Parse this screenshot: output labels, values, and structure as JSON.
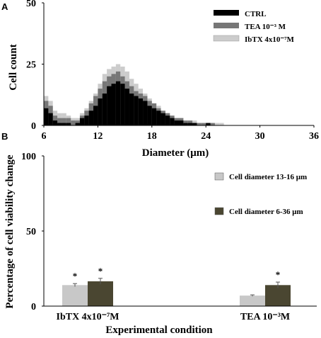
{
  "chart_data": [
    {
      "panel_label": "A",
      "type": "histogram",
      "xlabel": "Diameter (μm)",
      "ylabel": "Cell count",
      "xlim": [
        6,
        36
      ],
      "ylim": [
        0,
        50
      ],
      "x_ticks": [
        6,
        12,
        18,
        24,
        30,
        36
      ],
      "y_ticks": [
        0,
        25,
        50
      ],
      "legend_position": "top-right",
      "series": [
        {
          "name": "CTRL",
          "color": "#000000",
          "x": [
            6.0,
            6.5,
            7.0,
            7.5,
            8.0,
            8.5,
            9.0,
            9.5,
            10.0,
            10.5,
            11.0,
            11.5,
            12.0,
            12.5,
            13.0,
            13.5,
            14.0,
            14.5,
            15.0,
            15.5,
            16.0,
            16.5,
            17.0,
            17.5,
            18.0,
            18.5,
            19.0,
            19.5,
            20.0,
            20.5,
            21.0,
            21.5,
            22.0,
            22.5,
            23.0,
            23.5,
            24.0,
            24.5,
            25.0,
            25.5,
            26.0
          ],
          "values": [
            7,
            5,
            2,
            1,
            1,
            1,
            0,
            1,
            3,
            4,
            6,
            8,
            11,
            13,
            16,
            17,
            18,
            17,
            15,
            13,
            12,
            11,
            10,
            8,
            7,
            6,
            5,
            4,
            3,
            2,
            2,
            1,
            1,
            1,
            0,
            0,
            1,
            0,
            0,
            0,
            0
          ]
        },
        {
          "name": "TEA 10⁻³ M",
          "color": "#777777",
          "x": [
            6.0,
            6.5,
            7.0,
            7.5,
            8.0,
            8.5,
            9.0,
            9.5,
            10.0,
            10.5,
            11.0,
            11.5,
            12.0,
            12.5,
            13.0,
            13.5,
            14.0,
            14.5,
            15.0,
            15.5,
            16.0,
            16.5,
            17.0,
            17.5,
            18.0,
            18.5,
            19.0,
            19.5,
            20.0,
            20.5,
            21.0,
            21.5,
            22.0,
            22.5,
            23.0,
            23.5,
            24.0,
            24.5,
            25.0,
            25.5,
            26.0
          ],
          "values": [
            10,
            8,
            4,
            3,
            3,
            3,
            2,
            2,
            4,
            6,
            9,
            12,
            15,
            18,
            20,
            21,
            22,
            20,
            18,
            16,
            14,
            13,
            12,
            10,
            9,
            7,
            6,
            5,
            4,
            3,
            3,
            2,
            2,
            1,
            1,
            1,
            1,
            1,
            0,
            0,
            0
          ]
        },
        {
          "name": "IbTX 4x10⁻⁷M",
          "color": "#cccccc",
          "x": [
            6.0,
            6.5,
            7.0,
            7.5,
            8.0,
            8.5,
            9.0,
            9.5,
            10.0,
            10.5,
            11.0,
            11.5,
            12.0,
            12.5,
            13.0,
            13.5,
            14.0,
            14.5,
            15.0,
            15.5,
            16.0,
            16.5,
            17.0,
            17.5,
            18.0,
            18.5,
            19.0,
            19.5,
            20.0,
            20.5,
            21.0,
            21.5,
            22.0,
            22.5,
            23.0,
            23.5,
            24.0,
            24.5,
            25.0,
            25.5,
            26.0
          ],
          "values": [
            12,
            10,
            6,
            5,
            5,
            4,
            3,
            3,
            5,
            7,
            10,
            13,
            17,
            21,
            23,
            24,
            25,
            24,
            22,
            19,
            17,
            15,
            13,
            11,
            9,
            8,
            6,
            5,
            4,
            3,
            3,
            2,
            2,
            2,
            1,
            1,
            1,
            1,
            1,
            1,
            0
          ]
        }
      ]
    },
    {
      "panel_label": "B",
      "type": "bar",
      "xlabel": "Experimental condition",
      "ylabel": "Percentage of cell viability change",
      "ylim": [
        0,
        100
      ],
      "y_ticks": [
        0,
        50,
        100
      ],
      "categories": [
        "IbTX 4x10⁻⁷M",
        "TEA 10⁻³M"
      ],
      "legend_position": "right",
      "series": [
        {
          "name": "Cell diameter 13-16 μm",
          "color": "#c8c8c8",
          "values": [
            14,
            7
          ],
          "errors": [
            1,
            0.5
          ],
          "significant": [
            true,
            false
          ]
        },
        {
          "name": "Cell diameter 6-36 μm",
          "color": "#4a4631",
          "values": [
            16.5,
            14
          ],
          "errors": [
            2,
            2
          ],
          "significant": [
            true,
            true
          ]
        }
      ],
      "significance_marker": "*"
    }
  ]
}
